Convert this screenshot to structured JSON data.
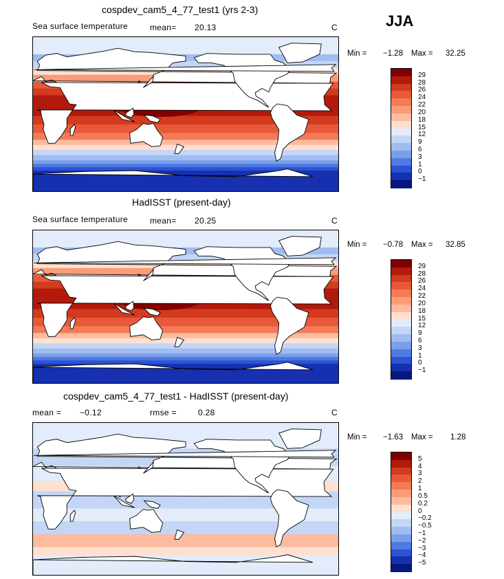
{
  "season": "JJA",
  "panels": [
    {
      "id": "model",
      "title": "cospdev_cam5_4_77_test1 (yrs 2-3)",
      "variable": "Sea surface temperature",
      "stat_left": "mean=",
      "stat_left_value": "20.13",
      "units": "C",
      "min_label": "Min =",
      "min_value": "−1.28",
      "max_label": "Max =",
      "max_value": "32.25",
      "colorbar_ticks": [
        "29",
        "28",
        "26",
        "24",
        "22",
        "20",
        "18",
        "15",
        "12",
        "9",
        "6",
        "3",
        "1",
        "0",
        "−1"
      ],
      "colorbar_colors": [
        "#800000",
        "#b21a0c",
        "#d33a1e",
        "#e8593a",
        "#f57a58",
        "#fa9b7a",
        "#fdbba0",
        "#fde0d0",
        "#e3ecfa",
        "#c3d6f6",
        "#a0bdf1",
        "#7a9fe9",
        "#4f7ae2",
        "#2a53d6",
        "#1630b0",
        "#071880"
      ]
    },
    {
      "id": "obs",
      "title": "HadISST (present-day)",
      "variable": "Sea surface temperature",
      "stat_left": "mean=",
      "stat_left_value": "20.25",
      "units": "C",
      "min_label": "Min =",
      "min_value": "−0.78",
      "max_label": "Max =",
      "max_value": "32.85",
      "colorbar_ticks": [
        "29",
        "28",
        "26",
        "24",
        "22",
        "20",
        "18",
        "15",
        "12",
        "9",
        "6",
        "3",
        "1",
        "0",
        "−1"
      ],
      "colorbar_colors": [
        "#800000",
        "#b21a0c",
        "#d33a1e",
        "#e8593a",
        "#f57a58",
        "#fa9b7a",
        "#fdbba0",
        "#fde0d0",
        "#e3ecfa",
        "#c3d6f6",
        "#a0bdf1",
        "#7a9fe9",
        "#4f7ae2",
        "#2a53d6",
        "#1630b0",
        "#071880"
      ]
    },
    {
      "id": "diff",
      "title": "cospdev_cam5_4_77_test1 - HadISST (present-day)",
      "variable": "mean =",
      "variable_value": "−0.12",
      "stat_left": "rmse =",
      "stat_left_value": "0.28",
      "units": "C",
      "min_label": "Min =",
      "min_value": "−1.63",
      "max_label": "Max =",
      "max_value": "1.28",
      "colorbar_ticks": [
        "5",
        "4",
        "3",
        "2",
        "1",
        "0.5",
        "0.2",
        "0",
        "−0.2",
        "−0.5",
        "−1",
        "−2",
        "−3",
        "−4",
        "−5"
      ],
      "colorbar_colors": [
        "#800000",
        "#b21a0c",
        "#d33a1e",
        "#e8593a",
        "#f57a58",
        "#fa9b7a",
        "#fdbba0",
        "#fde0d0",
        "#e3ecfa",
        "#c3d6f6",
        "#a0bdf1",
        "#7a9fe9",
        "#4f7ae2",
        "#2a53d6",
        "#1630b0",
        "#071880"
      ]
    }
  ]
}
